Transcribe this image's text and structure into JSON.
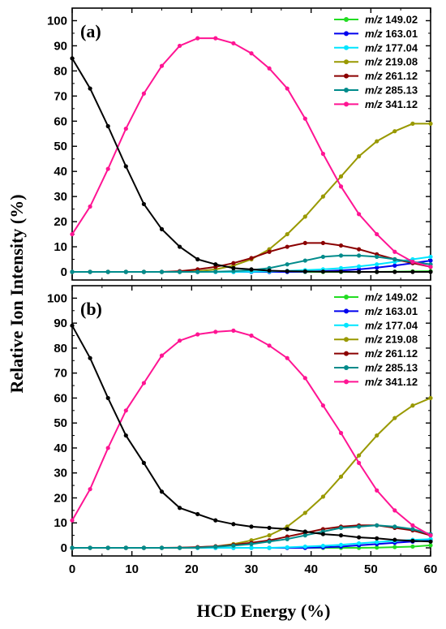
{
  "xlabel": "HCD Energy (%)",
  "ylabel": "Relative Ion Intensity (%)",
  "chart_data": [
    {
      "type": "line",
      "panel_label": "(a)",
      "xlim": [
        0,
        60
      ],
      "ylim": [
        0,
        105
      ],
      "x_ticks": [
        "0",
        "10",
        "20",
        "30",
        "40",
        "50",
        "60"
      ],
      "y_ticks": [
        "0",
        "10",
        "20",
        "30",
        "40",
        "50",
        "60",
        "70",
        "80",
        "90",
        "100"
      ],
      "legend_position": "top-right",
      "x": [
        0,
        3,
        6,
        9,
        12,
        15,
        18,
        21,
        24,
        27,
        30,
        33,
        36,
        39,
        42,
        45,
        48,
        51,
        54,
        57,
        60
      ],
      "series": [
        {
          "name": "m/z 149.02",
          "color": "#22dd22",
          "values": [
            0,
            0,
            0,
            0,
            0,
            0,
            0,
            0,
            0,
            0,
            0,
            0,
            0,
            0,
            0,
            0,
            0,
            0,
            0.1,
            0.2,
            0.3
          ]
        },
        {
          "name": "m/z 163.01",
          "color": "#0000ee",
          "values": [
            0,
            0,
            0,
            0,
            0,
            0,
            0,
            0,
            0,
            0,
            0,
            0,
            0,
            0.1,
            0.3,
            0.6,
            1,
            1.7,
            2.5,
            3.5,
            4.5
          ]
        },
        {
          "name": "m/z 177.04",
          "color": "#00e5ff",
          "values": [
            0,
            0,
            0,
            0,
            0,
            0,
            0,
            0,
            0,
            0,
            0.1,
            0.2,
            0.4,
            0.7,
            1,
            1.5,
            2.2,
            3,
            4,
            5,
            6
          ]
        },
        {
          "name": "m/z 219.08",
          "color": "#999900",
          "values": [
            0,
            0,
            0,
            0,
            0,
            0,
            0,
            0.3,
            1,
            2.5,
            5,
            9,
            15,
            22,
            30,
            38,
            46,
            52,
            56,
            59,
            59
          ]
        },
        {
          "name": "m/z 261.12",
          "color": "#8b0000",
          "values": [
            0,
            0,
            0,
            0,
            0,
            0,
            0.3,
            1,
            2,
            3.5,
            5.5,
            8,
            10,
            11.5,
            11.5,
            10.5,
            9,
            7,
            5,
            3.5,
            2
          ]
        },
        {
          "name": "m/z 285.13",
          "color": "#008b8b",
          "values": [
            0,
            0,
            0,
            0,
            0,
            0,
            0,
            0,
            0.1,
            0.3,
            0.7,
            1.5,
            3,
            4.5,
            6,
            6.5,
            6.5,
            6,
            5,
            4,
            3
          ]
        },
        {
          "name": "m/z 341.12",
          "color": "#ff1493",
          "values": [
            15,
            26,
            41,
            57,
            71,
            82,
            90,
            93,
            93,
            91,
            87,
            81,
            73,
            61,
            47,
            34,
            23,
            15,
            8,
            4,
            2
          ]
        },
        {
          "name": "",
          "color": "#000000",
          "values": [
            85,
            73,
            58,
            42,
            27,
            17,
            10,
            5,
            3,
            1.5,
            1,
            0.5,
            0.3,
            0.2,
            0.1,
            0.1,
            0,
            0,
            0,
            0,
            0
          ]
        }
      ]
    },
    {
      "type": "line",
      "panel_label": "(b)",
      "xlim": [
        0,
        60
      ],
      "ylim": [
        0,
        105
      ],
      "x_ticks": [
        "0",
        "10",
        "20",
        "30",
        "40",
        "50",
        "60"
      ],
      "y_ticks": [
        "0",
        "10",
        "20",
        "30",
        "40",
        "50",
        "60",
        "70",
        "80",
        "90",
        "100"
      ],
      "legend_position": "top-right",
      "x": [
        0,
        3,
        6,
        9,
        12,
        15,
        18,
        21,
        24,
        27,
        30,
        33,
        36,
        39,
        42,
        45,
        48,
        51,
        54,
        57,
        60
      ],
      "series": [
        {
          "name": "m/z 149.02",
          "color": "#22dd22",
          "values": [
            0,
            0,
            0,
            0,
            0,
            0,
            0,
            0,
            0,
            0,
            0,
            0,
            0,
            0,
            0,
            0,
            0,
            0.1,
            0.3,
            0.5,
            1
          ]
        },
        {
          "name": "m/z 163.01",
          "color": "#0000ee",
          "values": [
            0,
            0,
            0,
            0,
            0,
            0,
            0,
            0,
            0,
            0,
            0,
            0,
            0,
            0,
            0.2,
            0.5,
            1,
            1.5,
            2,
            2.5,
            3
          ]
        },
        {
          "name": "m/z 177.04",
          "color": "#00e5ff",
          "values": [
            0,
            0,
            0,
            0,
            0,
            0,
            0,
            0,
            0,
            0,
            0,
            0,
            0.2,
            0.5,
            0.8,
            1.2,
            1.8,
            2.3,
            2.8,
            3.2,
            3.5
          ]
        },
        {
          "name": "m/z 219.08",
          "color": "#999900",
          "values": [
            0,
            0,
            0,
            0,
            0,
            0,
            0,
            0.2,
            0.6,
            1.5,
            3,
            5,
            8.5,
            14,
            20.5,
            28.5,
            37,
            45,
            52,
            57,
            60
          ]
        },
        {
          "name": "m/z 261.12",
          "color": "#8b0000",
          "values": [
            0,
            0,
            0,
            0,
            0,
            0,
            0.1,
            0.3,
            0.6,
            1.2,
            2,
            3,
            4.5,
            6,
            7.5,
            8.5,
            9,
            9,
            8,
            7,
            5
          ]
        },
        {
          "name": "m/z 285.13",
          "color": "#008b8b",
          "values": [
            0,
            0,
            0,
            0,
            0,
            0,
            0,
            0.1,
            0.4,
            0.9,
            1.5,
            2.5,
            3.5,
            5,
            6.5,
            8,
            8.5,
            9,
            8.5,
            7.5,
            5.5
          ]
        },
        {
          "name": "m/z 341.12",
          "color": "#ff1493",
          "values": [
            11,
            23.5,
            40,
            55,
            66,
            77,
            83,
            85.5,
            86.5,
            87,
            85,
            81,
            76,
            68,
            57,
            46,
            34,
            23,
            15,
            9,
            5
          ]
        },
        {
          "name": "",
          "color": "#000000",
          "values": [
            89,
            76,
            60,
            45,
            34,
            22.5,
            16,
            13.5,
            11,
            9.5,
            8.5,
            8,
            7.5,
            6.5,
            5.5,
            5,
            4.2,
            3.8,
            3.2,
            2.8,
            2.5
          ]
        }
      ]
    }
  ]
}
